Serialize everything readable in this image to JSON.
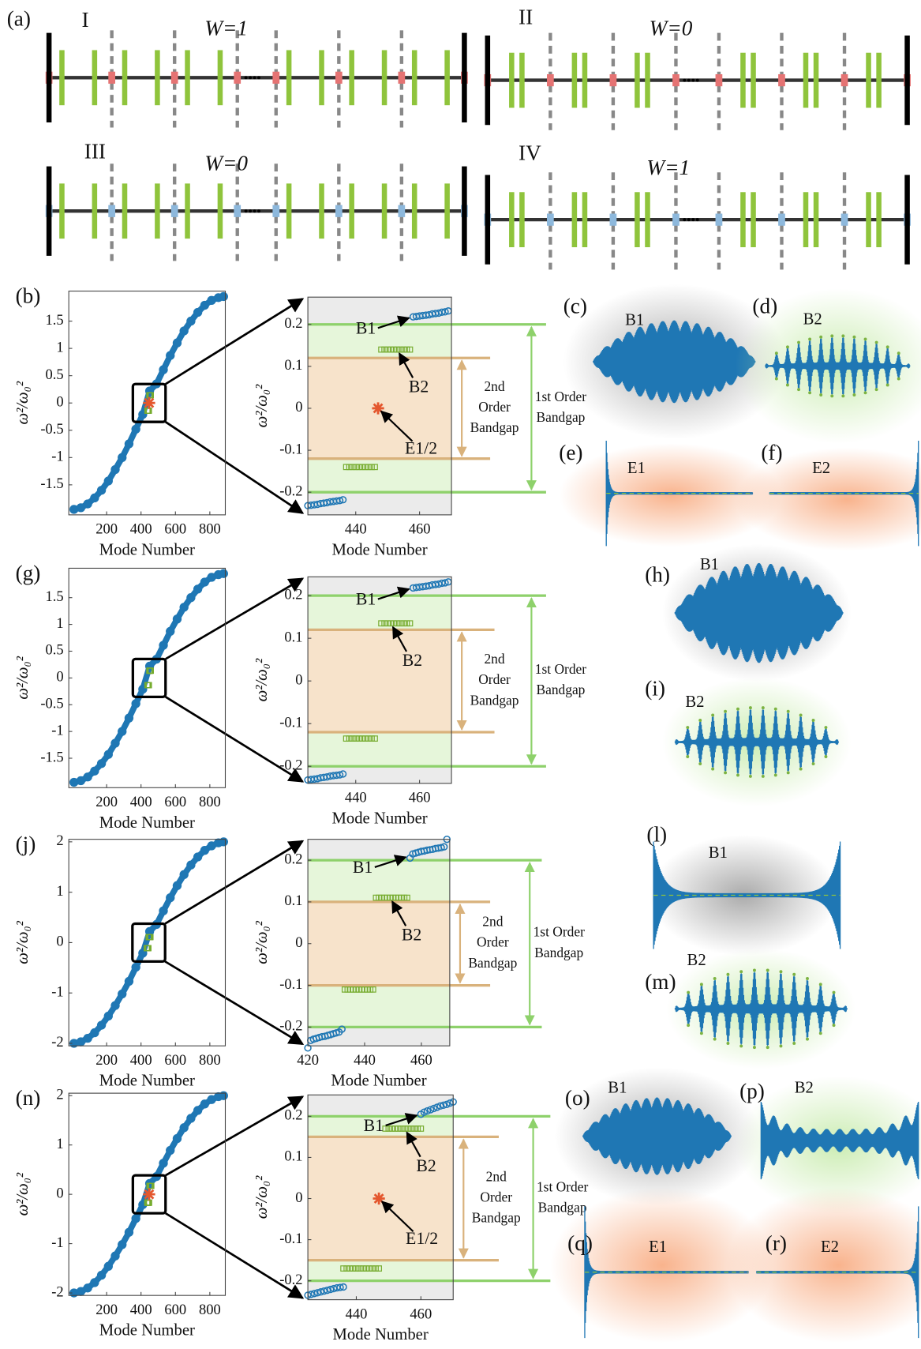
{
  "panel_a": {
    "label": "(a)",
    "chains": [
      {
        "numeral": "I",
        "winding": "W=1"
      },
      {
        "numeral": "II",
        "winding": "W=0"
      },
      {
        "numeral": "III",
        "winding": "W=0"
      },
      {
        "numeral": "IV",
        "winding": "W=1"
      }
    ]
  },
  "chart_data": [
    {
      "type": "scatter",
      "panel": "(b)",
      "xlabel": "Mode Number",
      "ylabel": "ω²/ω₀²",
      "xlim": [
        -20,
        890
      ],
      "ylim": [
        -2.05,
        2.05
      ],
      "xticks": [
        200,
        400,
        600,
        800
      ],
      "yticks": [
        -1.5,
        -1,
        -0.5,
        0,
        0.5,
        1,
        1.5
      ],
      "series": [
        {
          "color": "#1f77b4",
          "marker": "circle",
          "x": [
            10,
            50,
            90,
            130,
            170,
            210,
            250,
            290,
            330,
            370,
            410,
            450,
            490,
            530,
            570,
            610,
            650,
            690,
            730,
            770,
            810,
            850,
            880
          ],
          "values": [
            -1.95,
            -1.92,
            -1.85,
            -1.74,
            -1.6,
            -1.43,
            -1.22,
            -1,
            -0.75,
            -0.48,
            -0.21,
            0.22,
            0.35,
            0.61,
            0.87,
            1.1,
            1.32,
            1.5,
            1.66,
            1.79,
            1.88,
            1.93,
            1.95
          ]
        }
      ]
    },
    {
      "type": "scatter",
      "xlabel": "Mode Number",
      "ylabel": "ω²/ω₀²",
      "xlim": [
        425,
        470
      ],
      "ylim": [
        -0.254,
        0.265
      ],
      "xticks": [
        440,
        460
      ],
      "yticks": [
        -0.2,
        -0.1,
        0,
        0.1,
        0.2
      ],
      "series": [
        {
          "color": "#1f77b4",
          "marker": "circle",
          "x": [
            458,
            459,
            460,
            461,
            462,
            463,
            464,
            465,
            466,
            467,
            468,
            469
          ],
          "values": [
            0.218,
            0.219,
            0.22,
            0.221,
            0.222,
            0.223,
            0.225,
            0.226,
            0.227,
            0.229,
            0.23,
            0.232
          ]
        },
        {
          "color": "#1f77b4",
          "marker": "circle",
          "x": [
            425,
            426,
            427,
            428,
            429,
            430,
            431,
            432,
            433,
            434,
            435,
            436
          ],
          "values": [
            -0.232,
            -0.231,
            -0.23,
            -0.229,
            -0.227,
            -0.226,
            -0.225,
            -0.223,
            -0.222,
            -0.221,
            -0.22,
            -0.218
          ]
        },
        {
          "color": "#77ac30",
          "marker": "square",
          "x": [
            448,
            449,
            450,
            451,
            452,
            453,
            454,
            455,
            456,
            457
          ],
          "values": [
            0.14,
            0.14,
            0.14,
            0.14,
            0.14,
            0.14,
            0.14,
            0.14,
            0.14,
            0.14
          ]
        },
        {
          "color": "#77ac30",
          "marker": "square",
          "x": [
            437,
            438,
            439,
            440,
            441,
            442,
            443,
            444,
            445,
            446
          ],
          "values": [
            -0.14,
            -0.14,
            -0.14,
            -0.14,
            -0.14,
            -0.14,
            -0.14,
            -0.14,
            -0.14,
            -0.14
          ]
        },
        {
          "color": "#e4572e",
          "marker": "star",
          "x": [
            447
          ],
          "values": [
            0
          ]
        }
      ],
      "bandgaps": [
        {
          "label": [
            "1st Order",
            "Bandgap"
          ],
          "lower": -0.2,
          "upper": 0.2,
          "color": "#8ed16b"
        },
        {
          "label": [
            "2nd",
            "Order",
            "Bandgap"
          ],
          "lower": -0.12,
          "upper": 0.12,
          "color": "#d9b27c"
        }
      ],
      "annotations": [
        {
          "text": "B1",
          "x": 458,
          "y": 0.218
        },
        {
          "text": "B2",
          "x": 453,
          "y": 0.14
        },
        {
          "text": "E1/2",
          "x": 447,
          "y": 0
        }
      ]
    },
    {
      "type": "scatter",
      "panel": "(g)",
      "xlabel": "Mode Number",
      "ylabel": "ω²/ω₀²",
      "xlim": [
        -20,
        890
      ],
      "ylim": [
        -2.05,
        2.05
      ],
      "xticks": [
        200,
        400,
        600,
        800
      ],
      "yticks": [
        -1.5,
        -1,
        -0.5,
        0,
        0.5,
        1,
        1.5
      ],
      "series": [
        {
          "color": "#1f77b4",
          "marker": "circle",
          "x": [
            10,
            50,
            90,
            130,
            170,
            210,
            250,
            290,
            330,
            370,
            410,
            450,
            490,
            530,
            570,
            610,
            650,
            690,
            730,
            770,
            810,
            850,
            880
          ],
          "values": [
            -1.95,
            -1.92,
            -1.85,
            -1.74,
            -1.6,
            -1.43,
            -1.22,
            -1,
            -0.75,
            -0.48,
            -0.21,
            0.22,
            0.35,
            0.61,
            0.87,
            1.1,
            1.32,
            1.5,
            1.66,
            1.79,
            1.88,
            1.93,
            1.95
          ]
        }
      ]
    },
    {
      "type": "scatter",
      "xlabel": "Mode Number",
      "ylabel": "ω²/ω₀²",
      "xlim": [
        425,
        470
      ],
      "ylim": [
        -0.24,
        0.244
      ],
      "xticks": [
        440,
        460
      ],
      "yticks": [
        -0.2,
        -0.1,
        0,
        0.1,
        0.2
      ],
      "series": [
        {
          "color": "#1f77b4",
          "marker": "circle",
          "x": [
            458,
            459,
            460,
            461,
            462,
            463,
            464,
            465,
            466,
            467,
            468,
            469
          ],
          "values": [
            0.218,
            0.219,
            0.22,
            0.221,
            0.222,
            0.223,
            0.225,
            0.226,
            0.227,
            0.229,
            0.23,
            0.232
          ]
        },
        {
          "color": "#1f77b4",
          "marker": "circle",
          "x": [
            425,
            426,
            427,
            428,
            429,
            430,
            431,
            432,
            433,
            434,
            435,
            436
          ],
          "values": [
            -0.232,
            -0.231,
            -0.23,
            -0.229,
            -0.227,
            -0.226,
            -0.225,
            -0.223,
            -0.222,
            -0.221,
            -0.22,
            -0.218
          ]
        },
        {
          "color": "#77ac30",
          "marker": "square",
          "x": [
            448,
            449,
            450,
            451,
            452,
            453,
            454,
            455,
            456,
            457
          ],
          "values": [
            0.135,
            0.135,
            0.135,
            0.135,
            0.135,
            0.135,
            0.135,
            0.135,
            0.135,
            0.135
          ]
        },
        {
          "color": "#77ac30",
          "marker": "square",
          "x": [
            437,
            438,
            439,
            440,
            441,
            442,
            443,
            444,
            445,
            446
          ],
          "values": [
            -0.135,
            -0.135,
            -0.135,
            -0.135,
            -0.135,
            -0.135,
            -0.135,
            -0.135,
            -0.135,
            -0.135
          ]
        }
      ],
      "bandgaps": [
        {
          "label": [
            "1st Order",
            "Bandgap"
          ],
          "lower": -0.2,
          "upper": 0.2,
          "color": "#8ed16b"
        },
        {
          "label": [
            "2nd",
            "Order",
            "Bandgap"
          ],
          "lower": -0.12,
          "upper": 0.12,
          "color": "#d9b27c"
        }
      ],
      "annotations": [
        {
          "text": "B1",
          "x": 458,
          "y": 0.218
        },
        {
          "text": "B2",
          "x": 451,
          "y": 0.135
        }
      ]
    },
    {
      "type": "scatter",
      "panel": "(j)",
      "xlabel": "Mode Number",
      "ylabel": "ω²/ω₀²",
      "xlim": [
        -20,
        890
      ],
      "ylim": [
        -2.05,
        2.05
      ],
      "xticks": [
        200,
        400,
        600,
        800
      ],
      "yticks": [
        -2,
        -1,
        0,
        1,
        2
      ],
      "series": [
        {
          "color": "#1f77b4",
          "marker": "circle",
          "x": [
            10,
            50,
            90,
            130,
            170,
            210,
            250,
            290,
            330,
            370,
            410,
            450,
            490,
            530,
            570,
            610,
            650,
            690,
            730,
            770,
            810,
            850,
            880
          ],
          "values": [
            -2,
            -1.97,
            -1.9,
            -1.79,
            -1.64,
            -1.46,
            -1.25,
            -1.02,
            -0.77,
            -0.49,
            -0.21,
            0.22,
            0.36,
            0.63,
            0.89,
            1.13,
            1.35,
            1.54,
            1.7,
            1.83,
            1.92,
            1.98,
            2
          ]
        }
      ]
    },
    {
      "type": "scatter",
      "xlabel": "Mode Number",
      "ylabel": "ω²/ω₀²",
      "xlim": [
        420,
        470
      ],
      "ylim": [
        -0.245,
        0.25
      ],
      "xticks": [
        420,
        440,
        460
      ],
      "yticks": [
        -0.2,
        -0.1,
        0,
        0.1,
        0.2
      ],
      "series": [
        {
          "color": "#1f77b4",
          "marker": "circle",
          "x": [
            456,
            457,
            458,
            459,
            460,
            461,
            462,
            463,
            464,
            465,
            466,
            467,
            468,
            469
          ],
          "values": [
            0.205,
            0.215,
            0.217,
            0.219,
            0.221,
            0.222,
            0.224,
            0.225,
            0.226,
            0.228,
            0.229,
            0.23,
            0.232,
            0.25
          ]
        },
        {
          "color": "#1f77b4",
          "marker": "circle",
          "x": [
            420,
            421,
            422,
            423,
            424,
            425,
            426,
            427,
            428,
            429,
            430,
            431,
            432
          ],
          "values": [
            -0.25,
            -0.232,
            -0.229,
            -0.227,
            -0.225,
            -0.223,
            -0.222,
            -0.22,
            -0.218,
            -0.216,
            -0.214,
            -0.212,
            -0.205
          ]
        },
        {
          "color": "#77ac30",
          "marker": "square",
          "x": [
            444,
            445,
            446,
            447,
            448,
            449,
            450,
            451,
            452,
            453,
            454,
            455
          ],
          "values": [
            0.11,
            0.11,
            0.11,
            0.11,
            0.11,
            0.11,
            0.11,
            0.11,
            0.11,
            0.11,
            0.11,
            0.11
          ]
        },
        {
          "color": "#77ac30",
          "marker": "square",
          "x": [
            433,
            434,
            435,
            436,
            437,
            438,
            439,
            440,
            441,
            442,
            443
          ],
          "values": [
            -0.11,
            -0.11,
            -0.11,
            -0.11,
            -0.11,
            -0.11,
            -0.11,
            -0.11,
            -0.11,
            -0.11,
            -0.11
          ]
        }
      ],
      "bandgaps": [
        {
          "label": [
            "1st Order",
            "Bandgap"
          ],
          "lower": -0.2,
          "upper": 0.2,
          "color": "#8ed16b"
        },
        {
          "label": [
            "2nd",
            "Order",
            "Bandgap"
          ],
          "lower": -0.1,
          "upper": 0.1,
          "color": "#d9b27c"
        }
      ],
      "annotations": [
        {
          "text": "B1",
          "x": 456,
          "y": 0.21
        },
        {
          "text": "B2",
          "x": 449,
          "y": 0.11
        }
      ]
    },
    {
      "type": "scatter",
      "panel": "(n)",
      "xlabel": "Mode Number",
      "ylabel": "ω²/ω₀²",
      "xlim": [
        -20,
        890
      ],
      "ylim": [
        -2.05,
        2.05
      ],
      "xticks": [
        200,
        400,
        600,
        800
      ],
      "yticks": [
        -2,
        -1,
        0,
        1,
        2
      ],
      "series": [
        {
          "color": "#1f77b4",
          "marker": "circle",
          "x": [
            10,
            50,
            90,
            130,
            170,
            210,
            250,
            290,
            330,
            370,
            410,
            450,
            490,
            530,
            570,
            610,
            650,
            690,
            730,
            770,
            810,
            850,
            880
          ],
          "values": [
            -2,
            -1.97,
            -1.9,
            -1.79,
            -1.64,
            -1.46,
            -1.25,
            -1.02,
            -0.77,
            -0.49,
            -0.21,
            0.22,
            0.36,
            0.63,
            0.89,
            1.13,
            1.35,
            1.54,
            1.7,
            1.83,
            1.92,
            1.98,
            2
          ]
        }
      ]
    },
    {
      "type": "scatter",
      "xlabel": "Mode Number",
      "ylabel": "ω²/ω₀²",
      "xlim": [
        425,
        470
      ],
      "ylim": [
        -0.246,
        0.252
      ],
      "xticks": [
        440,
        460
      ],
      "yticks": [
        -0.2,
        -0.1,
        0,
        0.1,
        0.2
      ],
      "series": [
        {
          "color": "#1f77b4",
          "marker": "circle",
          "x": [
            460,
            461,
            462,
            463,
            464,
            465,
            466,
            467,
            468,
            469,
            470
          ],
          "values": [
            0.205,
            0.21,
            0.213,
            0.216,
            0.219,
            0.222,
            0.225,
            0.227,
            0.229,
            0.232,
            0.235
          ]
        },
        {
          "color": "#1f77b4",
          "marker": "circle",
          "x": [
            425,
            426,
            427,
            428,
            429,
            430,
            431,
            432,
            433,
            434,
            435,
            436
          ],
          "values": [
            -0.235,
            -0.233,
            -0.231,
            -0.229,
            -0.227,
            -0.225,
            -0.223,
            -0.221,
            -0.219,
            -0.217,
            -0.216,
            -0.215
          ]
        },
        {
          "color": "#77ac30",
          "marker": "square",
          "x": [
            449,
            450,
            451,
            452,
            453,
            454,
            455,
            456,
            457,
            458,
            459,
            460
          ],
          "values": [
            0.17,
            0.17,
            0.17,
            0.17,
            0.17,
            0.17,
            0.17,
            0.17,
            0.17,
            0.17,
            0.17,
            0.17
          ]
        },
        {
          "color": "#77ac30",
          "marker": "square",
          "x": [
            436,
            437,
            438,
            439,
            440,
            441,
            442,
            443,
            444,
            445,
            446,
            447
          ],
          "values": [
            -0.17,
            -0.17,
            -0.17,
            -0.17,
            -0.17,
            -0.17,
            -0.17,
            -0.17,
            -0.17,
            -0.17,
            -0.17,
            -0.17
          ]
        },
        {
          "color": "#e4572e",
          "marker": "star",
          "x": [
            447
          ],
          "values": [
            0
          ]
        }
      ],
      "bandgaps": [
        {
          "label": [
            "1st Order",
            "Bandgap"
          ],
          "lower": -0.2,
          "upper": 0.2,
          "color": "#8ed16b"
        },
        {
          "label": [
            "2nd",
            "Order",
            "Bandgap"
          ],
          "lower": -0.15,
          "upper": 0.15,
          "color": "#d9b27c"
        }
      ],
      "annotations": [
        {
          "text": "B1",
          "x": 460,
          "y": 0.205
        },
        {
          "text": "B2",
          "x": 455,
          "y": 0.17
        },
        {
          "text": "E1/2",
          "x": 447,
          "y": 0
        }
      ]
    }
  ],
  "mode_panels": [
    {
      "label": "(c)",
      "title": "B1"
    },
    {
      "label": "(d)",
      "title": "B2"
    },
    {
      "label": "(e)",
      "title": "E1"
    },
    {
      "label": "(f)",
      "title": "E2"
    },
    {
      "label": "(h)",
      "title": "B1"
    },
    {
      "label": "(i)",
      "title": "B2"
    },
    {
      "label": "(l)",
      "title": "B1"
    },
    {
      "label": "(m)",
      "title": "B2"
    },
    {
      "label": "(o)",
      "title": "B1"
    },
    {
      "label": "(p)",
      "title": "B2"
    },
    {
      "label": "(q)",
      "title": "E1"
    },
    {
      "label": "(r)",
      "title": "E2"
    }
  ]
}
